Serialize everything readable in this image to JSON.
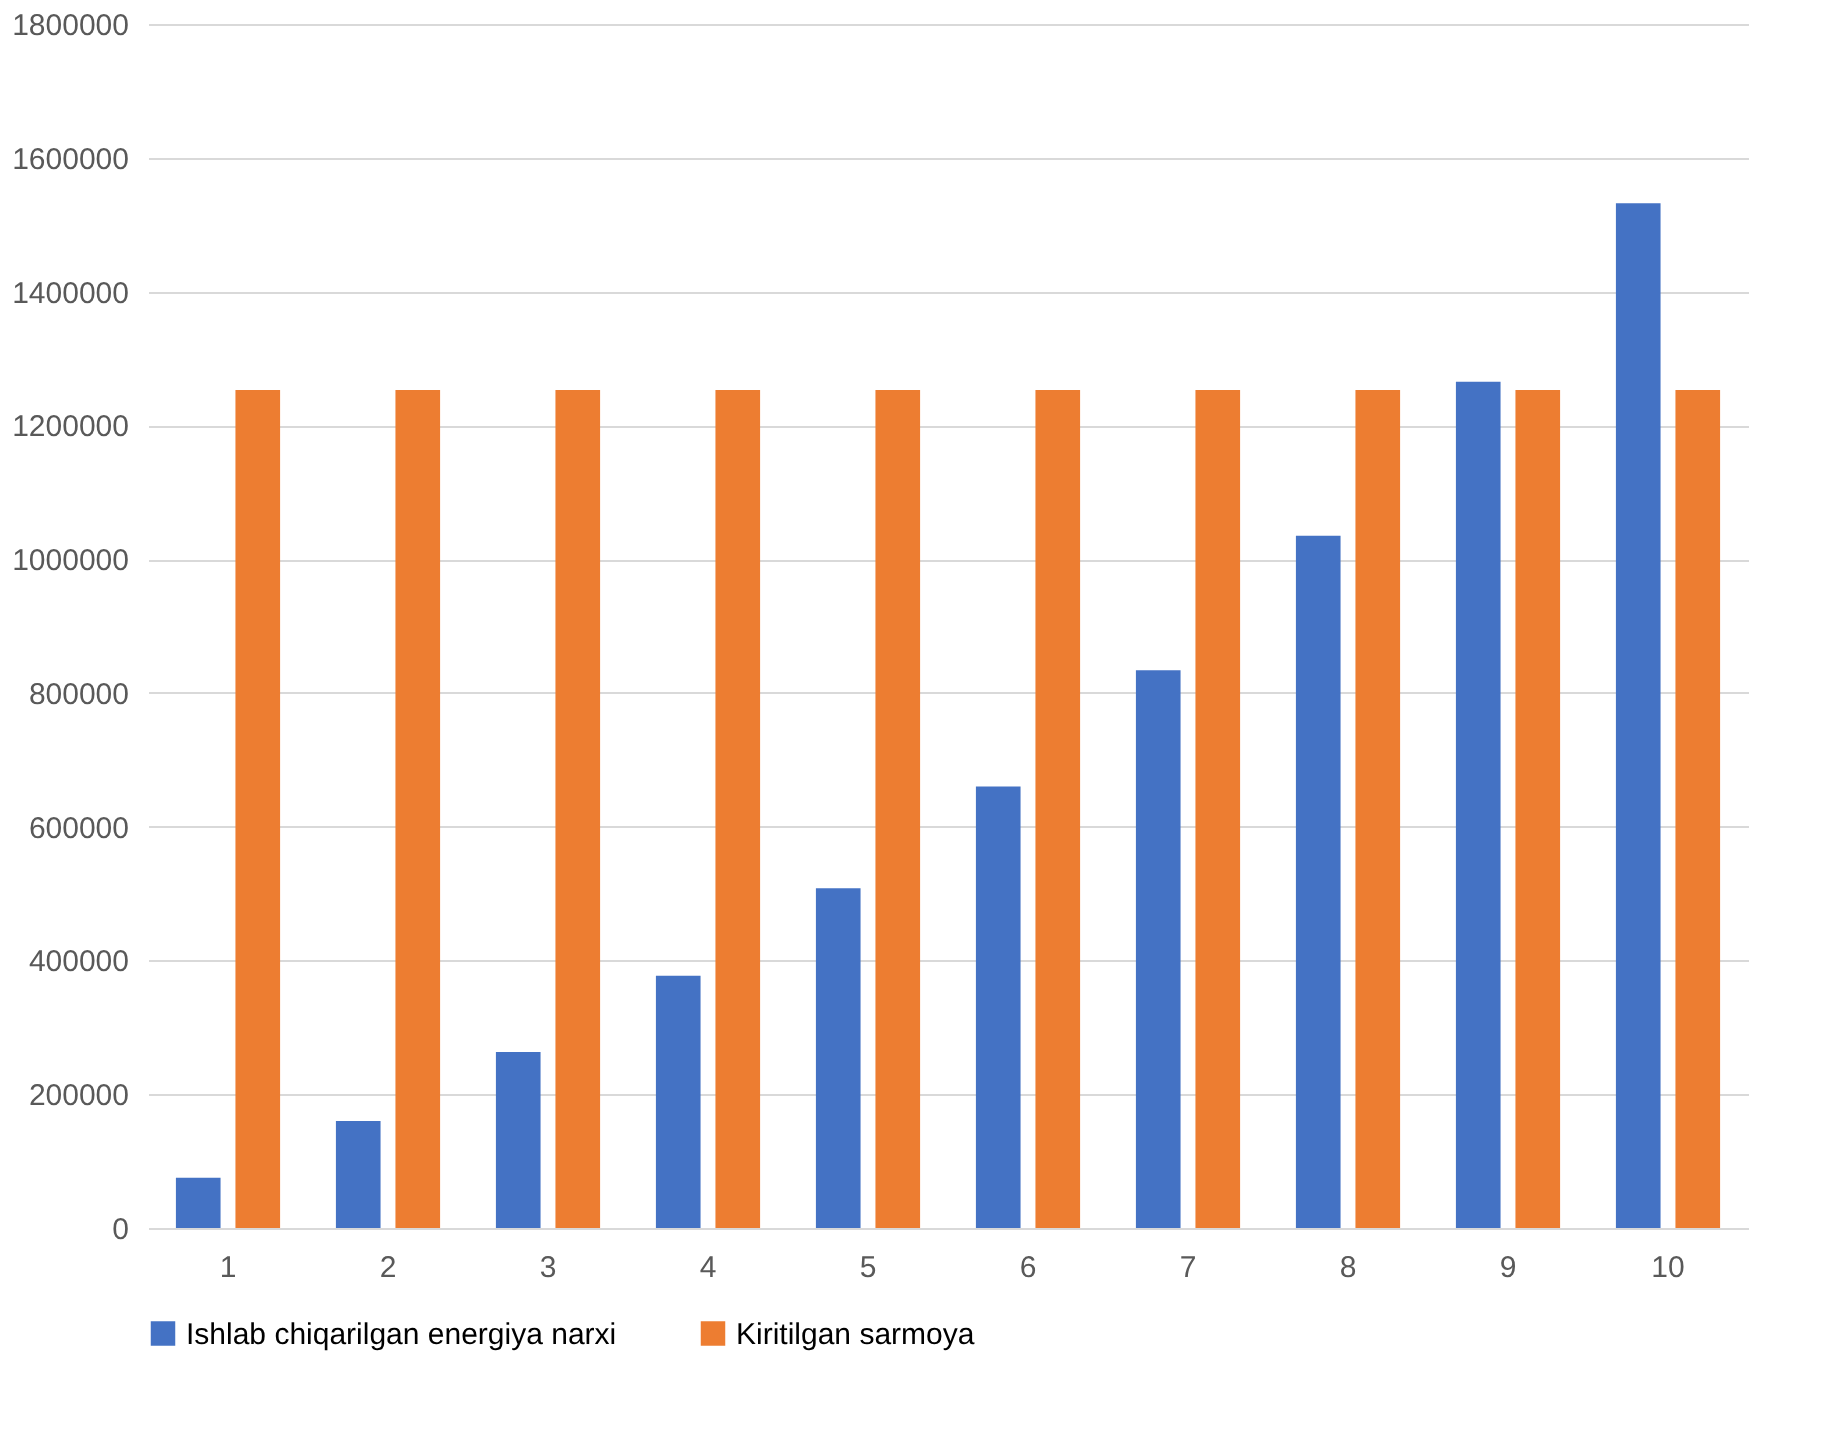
{
  "chart_data": {
    "type": "bar",
    "categories": [
      "1",
      "2",
      "3",
      "4",
      "5",
      "6",
      "7",
      "8",
      "9",
      "10"
    ],
    "series": [
      {
        "name": "Ishlab chiqarilgan energiya narxi",
        "color": "#4472c4",
        "values": [
          75000,
          160000,
          263000,
          377000,
          508000,
          660000,
          834000,
          1035000,
          1265000,
          1532000
        ]
      },
      {
        "name": "Kiritilgan sarmoya",
        "color": "#ed7d31",
        "values": [
          1253000,
          1253000,
          1253000,
          1253000,
          1253000,
          1253000,
          1253000,
          1253000,
          1253000,
          1253000
        ]
      }
    ],
    "ylim": [
      0,
      1800000
    ],
    "yticks": [
      0,
      200000,
      400000,
      600000,
      800000,
      1000000,
      1200000,
      1400000,
      1600000,
      1800000
    ],
    "grid": "y",
    "legend": "bottom"
  }
}
